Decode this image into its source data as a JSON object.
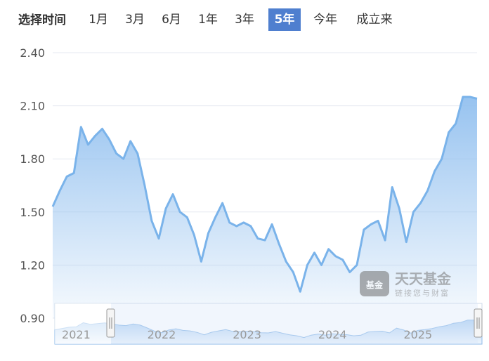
{
  "period_selector": {
    "title": "选择时间",
    "options": [
      "1月",
      "3月",
      "6月",
      "1年",
      "3年",
      "5年",
      "今年",
      "成立来"
    ],
    "active": "5年",
    "active_color": "#4f7fcf"
  },
  "watermark": {
    "brand": "天天基金",
    "slogan": "链接您与财富",
    "logo_text": "基金"
  },
  "chart_data": {
    "type": "area",
    "title": "",
    "xlabel": "",
    "ylabel": "",
    "ylim": [
      0.9,
      2.4
    ],
    "yticks": [
      "2.40",
      "2.10",
      "1.80",
      "1.50",
      "1.20",
      "0.90"
    ],
    "grid": true,
    "line_color": "#7ab3ea",
    "x": [
      "2020-10",
      "2020-11",
      "2020-12",
      "2021-01",
      "2021-02",
      "2021-03",
      "2021-04",
      "2021-05",
      "2021-06",
      "2021-07",
      "2021-08",
      "2021-09",
      "2021-10",
      "2021-11",
      "2021-12",
      "2022-01",
      "2022-02",
      "2022-03",
      "2022-04",
      "2022-05",
      "2022-06",
      "2022-07",
      "2022-08",
      "2022-09",
      "2022-10",
      "2022-11",
      "2022-12",
      "2023-01",
      "2023-02",
      "2023-03",
      "2023-04",
      "2023-05",
      "2023-06",
      "2023-07",
      "2023-08",
      "2023-09",
      "2023-10",
      "2023-11",
      "2023-12",
      "2024-01",
      "2024-02",
      "2024-03",
      "2024-04",
      "2024-05",
      "2024-06",
      "2024-07",
      "2024-08",
      "2024-09",
      "2024-10",
      "2024-11",
      "2024-12",
      "2025-01",
      "2025-02",
      "2025-03",
      "2025-04",
      "2025-05",
      "2025-06",
      "2025-07",
      "2025-08",
      "2025-09",
      "2025-10"
    ],
    "values": [
      1.53,
      1.62,
      1.7,
      1.72,
      1.98,
      1.88,
      1.93,
      1.97,
      1.91,
      1.83,
      1.8,
      1.9,
      1.83,
      1.65,
      1.45,
      1.35,
      1.52,
      1.6,
      1.5,
      1.47,
      1.37,
      1.22,
      1.38,
      1.47,
      1.55,
      1.44,
      1.42,
      1.44,
      1.42,
      1.35,
      1.34,
      1.43,
      1.32,
      1.22,
      1.16,
      1.05,
      1.2,
      1.27,
      1.2,
      1.29,
      1.25,
      1.23,
      1.16,
      1.2,
      1.4,
      1.43,
      1.45,
      1.34,
      1.64,
      1.52,
      1.33,
      1.5,
      1.55,
      1.62,
      1.73,
      1.8,
      1.95,
      2.0,
      2.15,
      2.15,
      2.14
    ],
    "navigator": {
      "labels": [
        "2021",
        "2022",
        "2023",
        "2024",
        "2025"
      ]
    }
  }
}
